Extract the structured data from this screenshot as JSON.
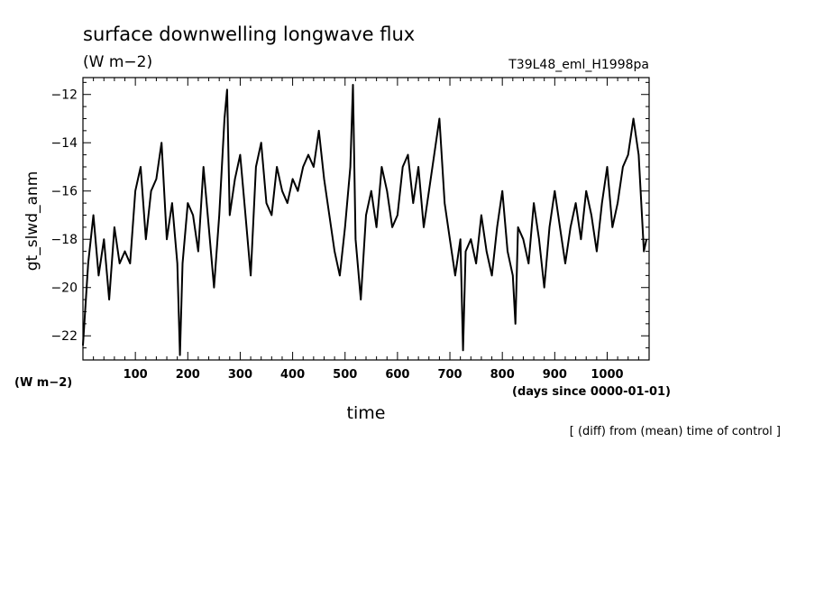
{
  "chart_data": {
    "type": "line",
    "title": "surface downwelling longwave flux",
    "title_units": "(W m−2)",
    "run_label": "T39L48_eml_H1998pa",
    "xlabel": "time",
    "xunits": "(days since 0000-01-01)",
    "ylabel": "gt_slwd_anm",
    "yunits": "(W m−2)",
    "footnote": "[ (diff) from (mean) time of control ]",
    "xlim": [
      0,
      1080
    ],
    "ylim": [
      -23,
      -11.3
    ],
    "xticks": [
      100,
      200,
      300,
      400,
      500,
      600,
      700,
      800,
      900,
      1000
    ],
    "yticks": [
      -22,
      -20,
      -18,
      -16,
      -14,
      -12
    ],
    "grid": false,
    "legend": "none",
    "line_color": "#000000",
    "series": [
      {
        "x": [
          0,
          10,
          20,
          30,
          40,
          50,
          60,
          70,
          80,
          90,
          100,
          110,
          120,
          130,
          140,
          150,
          160,
          170,
          180,
          185,
          190,
          200,
          210,
          220,
          230,
          240,
          250,
          260,
          270,
          275,
          280,
          290,
          300,
          310,
          320,
          330,
          340,
          350,
          360,
          370,
          380,
          390,
          400,
          410,
          420,
          430,
          440,
          450,
          460,
          470,
          480,
          490,
          500,
          510,
          515,
          520,
          530,
          540,
          550,
          560,
          570,
          580,
          590,
          600,
          610,
          620,
          630,
          640,
          650,
          660,
          670,
          680,
          690,
          700,
          710,
          720,
          725,
          730,
          740,
          750,
          760,
          770,
          780,
          790,
          800,
          810,
          820,
          825,
          830,
          840,
          850,
          860,
          870,
          880,
          890,
          900,
          910,
          920,
          930,
          940,
          950,
          960,
          970,
          980,
          990,
          1000,
          1010,
          1020,
          1030,
          1040,
          1050,
          1060,
          1070,
          1075
        ],
        "y": [
          -22.4,
          -19.0,
          -17.0,
          -19.5,
          -18.0,
          -20.5,
          -17.5,
          -19.0,
          -18.5,
          -19.0,
          -16.0,
          -15.0,
          -18.0,
          -16.0,
          -15.5,
          -14.0,
          -18.0,
          -16.5,
          -19.0,
          -22.8,
          -19.0,
          -16.5,
          -17.0,
          -18.5,
          -15.0,
          -17.5,
          -20.0,
          -17.0,
          -13.0,
          -11.8,
          -17.0,
          -15.5,
          -14.5,
          -17.0,
          -19.5,
          -15.0,
          -14.0,
          -16.5,
          -17.0,
          -15.0,
          -16.0,
          -16.5,
          -15.5,
          -16.0,
          -15.0,
          -14.5,
          -15.0,
          -13.5,
          -15.5,
          -17.0,
          -18.5,
          -19.5,
          -17.5,
          -15.0,
          -11.6,
          -18.0,
          -20.5,
          -17.0,
          -16.0,
          -17.5,
          -15.0,
          -16.0,
          -17.5,
          -17.0,
          -15.0,
          -14.5,
          -16.5,
          -15.0,
          -17.5,
          -16.0,
          -14.5,
          -13.0,
          -16.5,
          -18.0,
          -19.5,
          -18.0,
          -22.6,
          -18.5,
          -18.0,
          -19.0,
          -17.0,
          -18.5,
          -19.5,
          -17.5,
          -16.0,
          -18.5,
          -19.5,
          -21.5,
          -17.5,
          -18.0,
          -19.0,
          -16.5,
          -18.0,
          -20.0,
          -17.5,
          -16.0,
          -17.5,
          -19.0,
          -17.5,
          -16.5,
          -18.0,
          -16.0,
          -17.0,
          -18.5,
          -16.5,
          -15.0,
          -17.5,
          -16.5,
          -15.0,
          -14.5,
          -13.0,
          -14.5,
          -18.5,
          -18.0
        ]
      }
    ]
  }
}
